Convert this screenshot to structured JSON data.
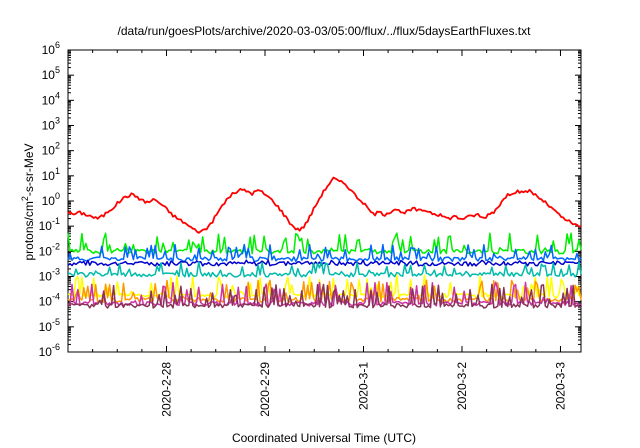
{
  "chart_data": {
    "type": "line",
    "title": "/data/run/goesPlots/archive/2020-03-03/05:00/flux/../flux/5daysEarthFluxes.txt",
    "xlabel": "Coordinated Universal Time (UTC)",
    "ylabel": {
      "prefix": "protons/cm",
      "sup": "2",
      "suffix": "-s-sr-MeV"
    },
    "yscale": "log",
    "ylim_exp": [
      -6,
      6
    ],
    "ytick_exps": [
      "-6",
      "-5",
      "-4",
      "-3",
      "-2",
      "-1",
      "0",
      "1",
      "2",
      "3",
      "4",
      "5",
      "6"
    ],
    "ytick_base": "10",
    "xlim": [
      "2020-02-27 00:00",
      "2020-03-03 05:00"
    ],
    "xticks": [
      {
        "label": "2020-2-28",
        "at": "2020-02-28 00:00"
      },
      {
        "label": "2020-2-29",
        "at": "2020-02-29 00:00"
      },
      {
        "label": "2020-3-1",
        "at": "2020-03-01 00:00"
      },
      {
        "label": "2020-3-2",
        "at": "2020-03-02 00:00"
      },
      {
        "label": "2020-3-3",
        "at": "2020-03-03 00:00"
      }
    ],
    "grid": false,
    "legend": "none",
    "series": [
      {
        "color": "#ff0000",
        "values": [
          0.35,
          0.3,
          0.35,
          0.3,
          0.25,
          0.2,
          0.25,
          0.4,
          0.6,
          1.0,
          1.5,
          1.8,
          1.5,
          1.0,
          0.9,
          1.2,
          0.8,
          0.5,
          0.3,
          0.2,
          0.15,
          0.1,
          0.07,
          0.06,
          0.08,
          0.15,
          0.35,
          0.8,
          1.5,
          2.2,
          2.8,
          2.5,
          2.0,
          2.7,
          2.0,
          1.3,
          0.8,
          0.4,
          0.2,
          0.1,
          0.07,
          0.1,
          0.25,
          0.7,
          1.8,
          4.0,
          8.0,
          6.0,
          5.0,
          3.0,
          1.5,
          1.0,
          0.5,
          0.3,
          0.35,
          0.3,
          0.4,
          0.5,
          0.3,
          0.4,
          0.5,
          0.4,
          0.45,
          0.35,
          0.3,
          0.25,
          0.2,
          0.25,
          0.2,
          0.22,
          0.25,
          0.3,
          0.2,
          0.3,
          0.4,
          0.8,
          1.5,
          2.2,
          2.5,
          2.0,
          2.7,
          1.8,
          1.2,
          0.8,
          0.5,
          0.3,
          0.2,
          0.15,
          0.11,
          0.09
        ]
      },
      {
        "color": "#00ee00",
        "base": 0.01,
        "amplitude": 4.5,
        "seed": 3
      },
      {
        "color": "#0066ff",
        "base": 0.005,
        "amplitude": 2.8,
        "seed": 11
      },
      {
        "color": "#0000cc",
        "base": 0.0033,
        "amplitude": 0.35,
        "seed": 7
      },
      {
        "color": "#00bbaa",
        "base": 0.0012,
        "amplitude": 2.2,
        "seed": 19
      },
      {
        "color": "#ffff00",
        "base": 0.00018,
        "amplitude": 5.5,
        "seed": 23
      },
      {
        "color": "#ff9900",
        "base": 0.00012,
        "amplitude": 5.0,
        "seed": 29
      },
      {
        "color": "#cc33aa",
        "base": 8.5e-05,
        "amplitude": 6.0,
        "seed": 31
      },
      {
        "color": "#883355",
        "base": 7e-05,
        "amplitude": 6.0,
        "seed": 37
      }
    ]
  }
}
